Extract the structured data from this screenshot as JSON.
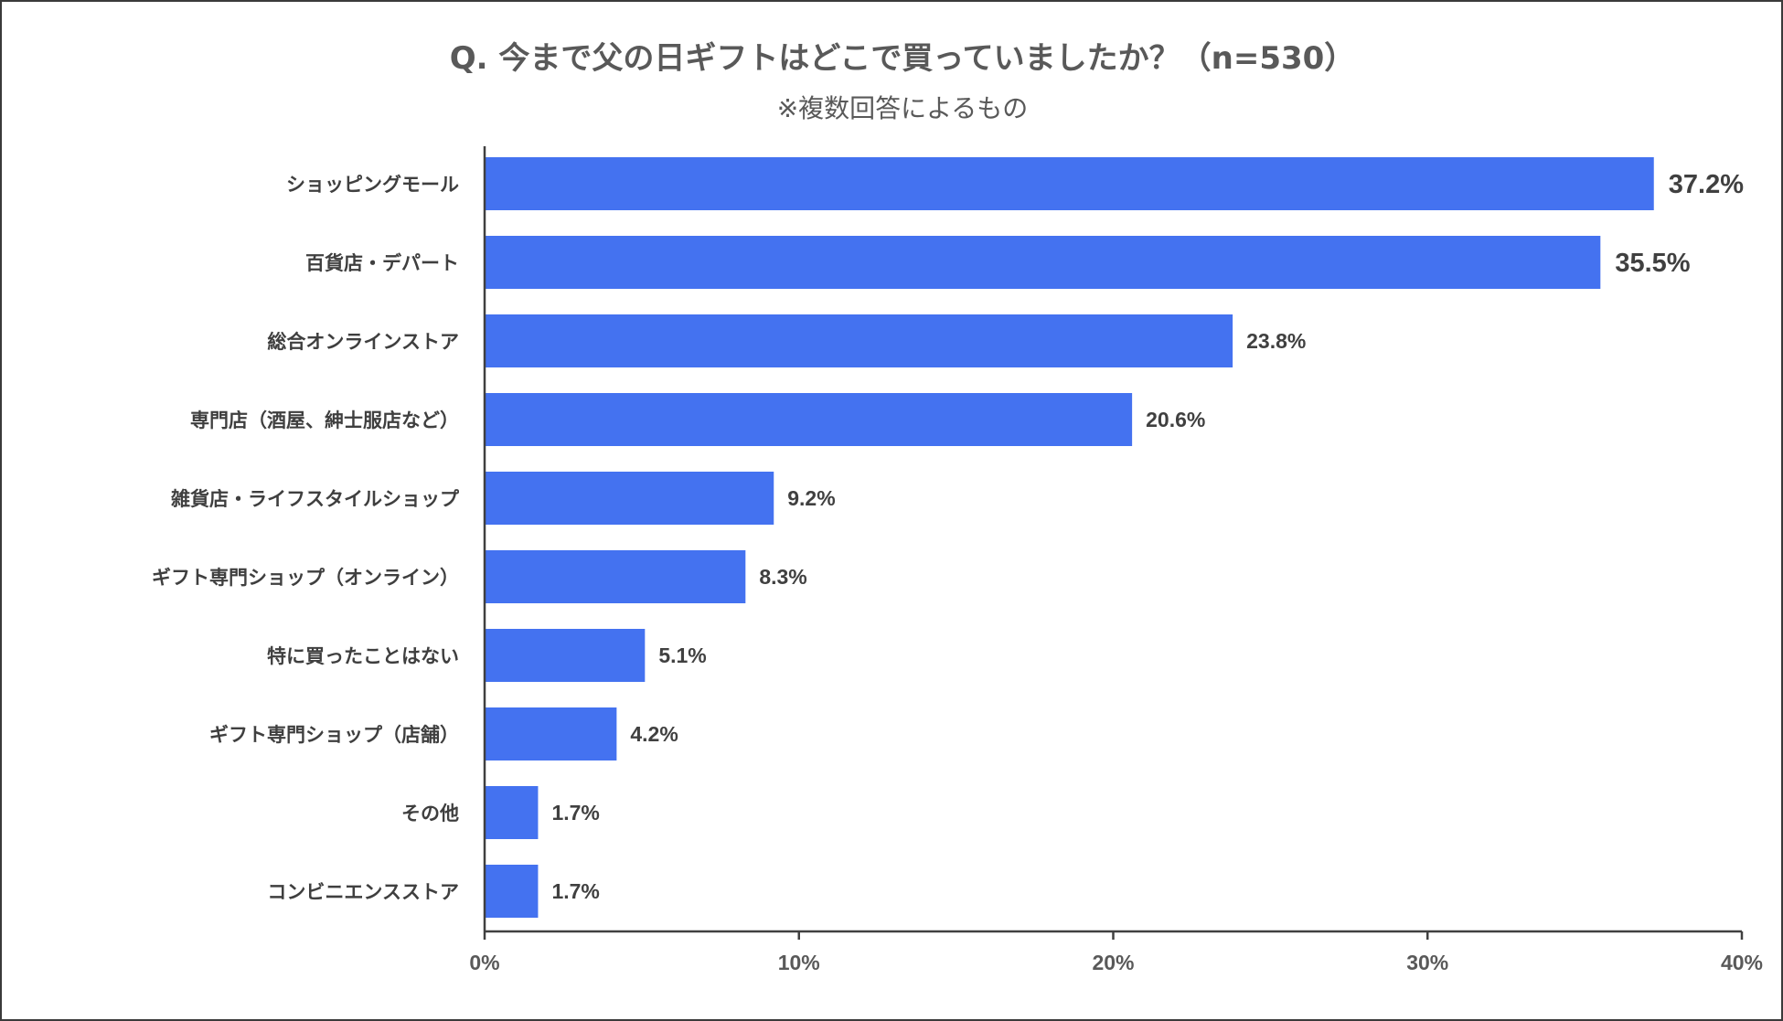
{
  "chart_data": {
    "type": "bar",
    "orientation": "horizontal",
    "title": "Q.  今まで父の日ギフトはどこで買っていましたか？（n=530）",
    "subtitle": "※複数回答によるもの",
    "categories": [
      "ショッピングモール",
      "百貨店・デパート",
      "総合オンラインストア",
      "専門店（酒屋、紳士服店など）",
      "雑貨店・ライフスタイルショップ",
      "ギフト専門ショップ（オンライン）",
      "特に買ったことはない",
      "ギフト専門ショップ（店舗）",
      "その他",
      "コンビニエンスストア"
    ],
    "values": [
      37.2,
      35.5,
      23.8,
      20.6,
      9.2,
      8.3,
      5.1,
      4.2,
      1.7,
      1.7
    ],
    "value_labels": [
      "37.2%",
      "35.5%",
      "23.8%",
      "20.6%",
      "9.2%",
      "8.3%",
      "5.1%",
      "4.2%",
      "1.7%",
      "1.7%"
    ],
    "xlim": [
      0,
      40
    ],
    "xticks": [
      0,
      10,
      20,
      30,
      40
    ],
    "xtick_labels": [
      "0%",
      "10%",
      "20%",
      "30%",
      "40%"
    ],
    "xlabel": "",
    "ylabel": "",
    "grid": false,
    "legend": "none",
    "bar_color": "#4472f0",
    "axis_color": "#404040"
  }
}
